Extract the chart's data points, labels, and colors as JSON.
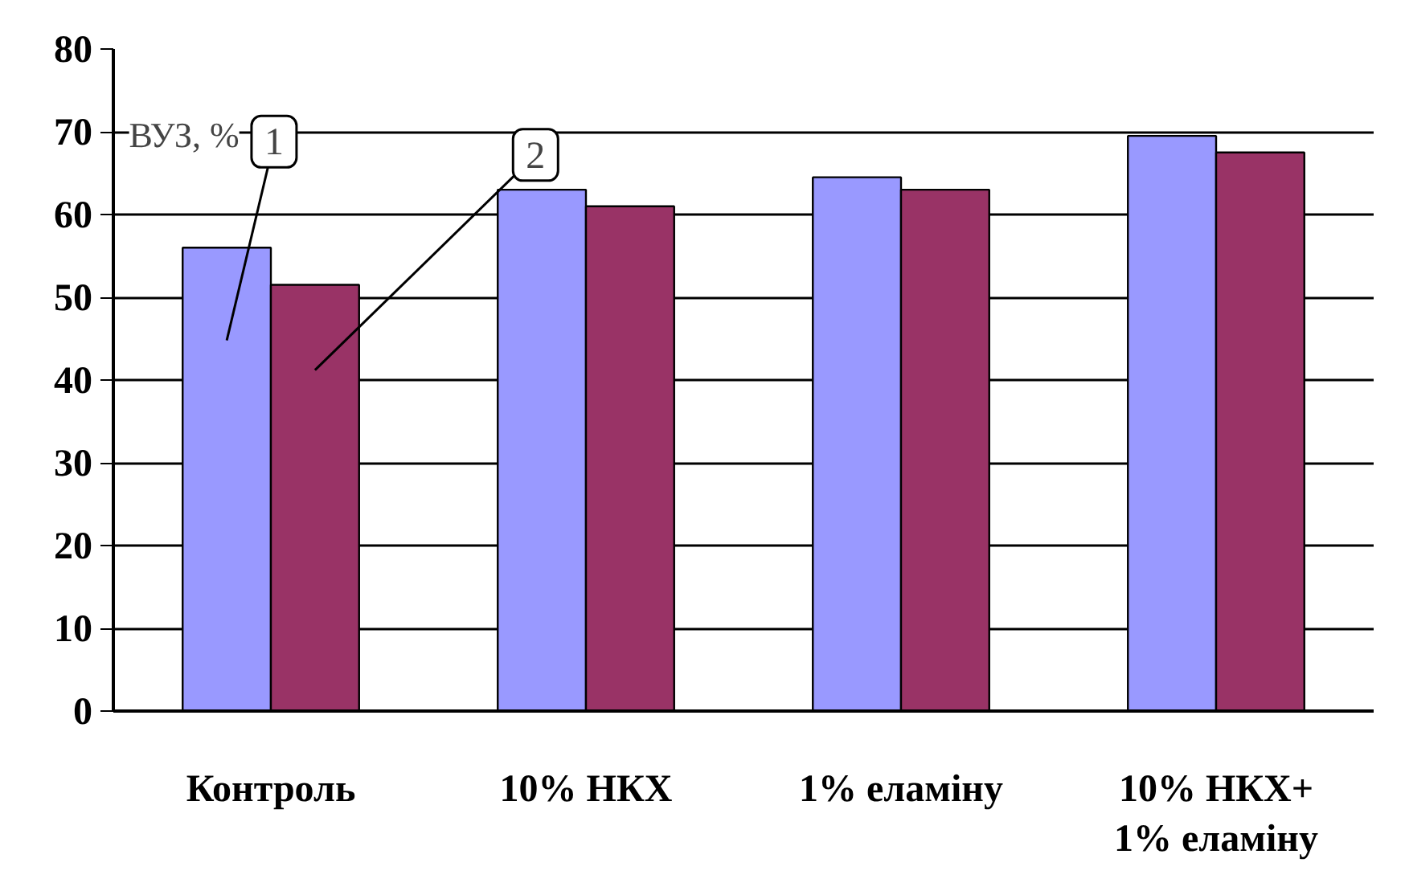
{
  "chart_data": {
    "type": "bar",
    "ylabel": "ВУЗ, %",
    "categories": [
      "Контроль",
      "10% НКХ",
      "1% еламіну",
      "10% НКХ+\n1% еламіну"
    ],
    "series": [
      {
        "name": "1",
        "color": "#9999ff",
        "values": [
          56,
          63,
          64.5,
          69.5
        ]
      },
      {
        "name": "2",
        "color": "#993366",
        "values": [
          51.5,
          61,
          63,
          67.5
        ]
      }
    ],
    "ylim": [
      0,
      80
    ],
    "yticks": [
      0,
      10,
      20,
      30,
      40,
      50,
      60,
      70,
      80
    ],
    "grid": "y",
    "legend": false
  }
}
